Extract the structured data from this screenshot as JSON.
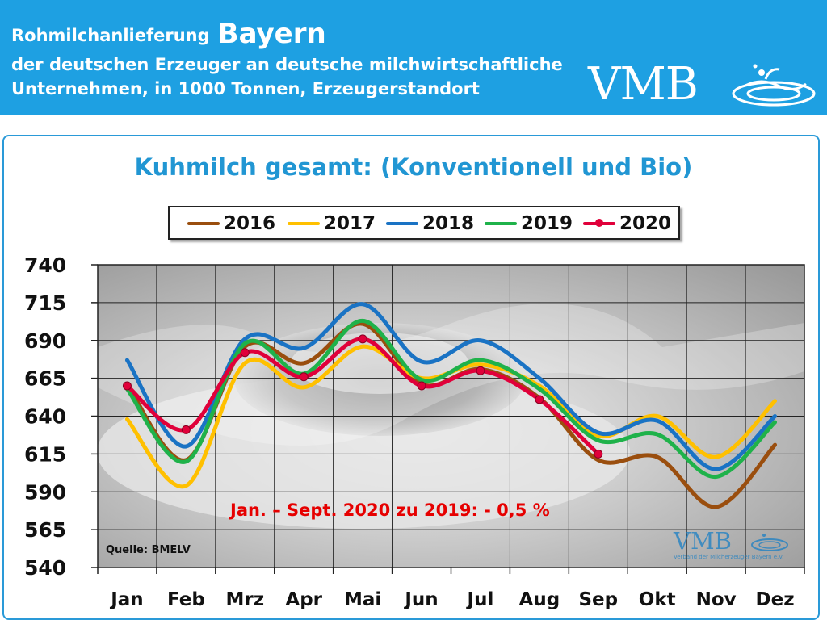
{
  "header": {
    "line1": "Rohmilchanlieferung",
    "line1_emph": "Bayern",
    "line2": "der deutschen Erzeuger an deutsche milchwirtschaftliche",
    "line3": "Unternehmen, in 1000 Tonnen, Erzeugerstandort",
    "brand": "VMB",
    "bg_color": "#1ea0e2"
  },
  "watermark": {
    "brand": "VMB",
    "subtitle": "Verband der Milcherzeuger Bayern e.V."
  },
  "annotation": "Jan. – Sept. 2020 zu 2019: - 0,5 %",
  "source": "Quelle: BMELV",
  "chart_data": {
    "type": "line",
    "title": "Kuhmilch gesamt: (Konventionell und Bio)",
    "xlabel": "",
    "ylabel": "",
    "categories": [
      "Jan",
      "Feb",
      "Mrz",
      "Apr",
      "Mai",
      "Jun",
      "Jul",
      "Aug",
      "Sep",
      "Okt",
      "Nov",
      "Dez"
    ],
    "ylim": [
      540,
      740
    ],
    "yticks": [
      540,
      565,
      590,
      615,
      640,
      665,
      690,
      715,
      740
    ],
    "grid": true,
    "legend_position": "top",
    "series": [
      {
        "name": "2016",
        "color": "#9a4e0e",
        "values": [
          661,
          611,
          686,
          675,
          701,
          661,
          671,
          652,
          611,
          613,
          580,
          621
        ]
      },
      {
        "name": "2017",
        "color": "#ffc000",
        "values": [
          638,
          594,
          675,
          659,
          686,
          665,
          674,
          660,
          627,
          640,
          613,
          650
        ]
      },
      {
        "name": "2018",
        "color": "#1a73c4",
        "values": [
          677,
          620,
          691,
          685,
          714,
          676,
          690,
          665,
          629,
          637,
          605,
          640
        ]
      },
      {
        "name": "2019",
        "color": "#1fb24a",
        "values": [
          658,
          610,
          688,
          668,
          703,
          664,
          677,
          658,
          624,
          628,
          600,
          636
        ]
      },
      {
        "name": "2020",
        "color": "#e0003a",
        "marker": true,
        "values": [
          660,
          631,
          682,
          666,
          691,
          660,
          670,
          651,
          615,
          null,
          null,
          null
        ]
      }
    ]
  }
}
